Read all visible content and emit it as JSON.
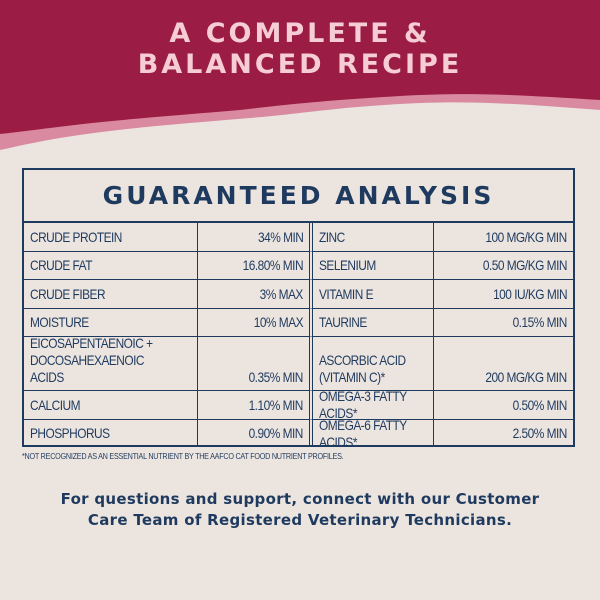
{
  "headline": {
    "line1": "A COMPLETE &",
    "line2": "BALANCED RECIPE"
  },
  "colors": {
    "banner": "#9b1c45",
    "banner_accent": "#d98aa0",
    "background": "#ece5df",
    "ink": "#1f3a5f",
    "headline": "#f6cdd5"
  },
  "table": {
    "title": "GUARANTEED ANALYSIS",
    "rows": [
      {
        "left_label": "CRUDE PROTEIN",
        "left_value": "34% MIN",
        "right_label": "ZINC",
        "right_value": "100 MG/KG MIN"
      },
      {
        "left_label": "CRUDE FAT",
        "left_value": "16.80% MIN",
        "right_label": "SELENIUM",
        "right_value": "0.50 MG/KG MIN"
      },
      {
        "left_label": "CRUDE FIBER",
        "left_value": "3% MAX",
        "right_label": "VITAMIN E",
        "right_value": "100 IU/KG MIN"
      },
      {
        "left_label": "MOISTURE",
        "left_value": "10% MAX",
        "right_label": "TAURINE",
        "right_value": "0.15% MIN"
      },
      {
        "left_label": "EICOSAPENTAENOIC +\nDOCOSAHEXAENOIC ACIDS",
        "left_value": "0.35% MIN",
        "right_label": "ASCORBIC ACID\n(VITAMIN C)*",
        "right_value": "200 MG/KG MIN"
      },
      {
        "left_label": "CALCIUM",
        "left_value": "1.10% MIN",
        "right_label": "OMEGA-3 FATTY ACIDS*",
        "right_value": "0.50% MIN"
      },
      {
        "left_label": "PHOSPHORUS",
        "left_value": "0.90% MIN",
        "right_label": "OMEGA-6 FATTY ACIDS*",
        "right_value": "2.50% MIN"
      }
    ]
  },
  "footnote": "*NOT RECOGNIZED AS AN ESSENTIAL NUTRIENT BY THE AAFCO CAT FOOD NUTRIENT PROFILES.",
  "support": {
    "line1": "For questions and support, connect with our Customer",
    "line2": "Care Team of Registered Veterinary Technicians."
  }
}
